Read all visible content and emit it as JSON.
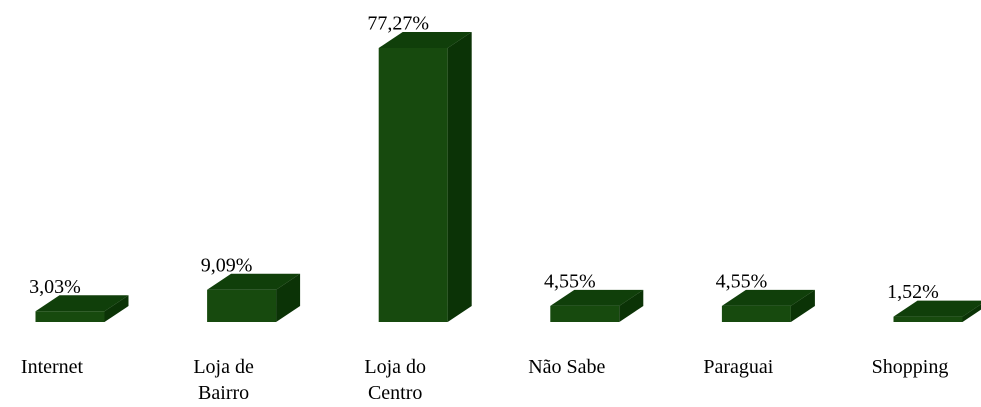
{
  "chart_data": {
    "type": "bar3d",
    "categories": [
      "Internet",
      "Loja de Bairro",
      "Loja do Centro",
      "Não Sabe",
      "Paraguai",
      "Shopping"
    ],
    "values": [
      3.03,
      9.09,
      77.27,
      4.55,
      4.55,
      1.52
    ],
    "value_labels": [
      "3,03%",
      "9,09%",
      "77,27%",
      "4,55%",
      "4,55%",
      "1,52%"
    ],
    "color": "#174a0e"
  }
}
